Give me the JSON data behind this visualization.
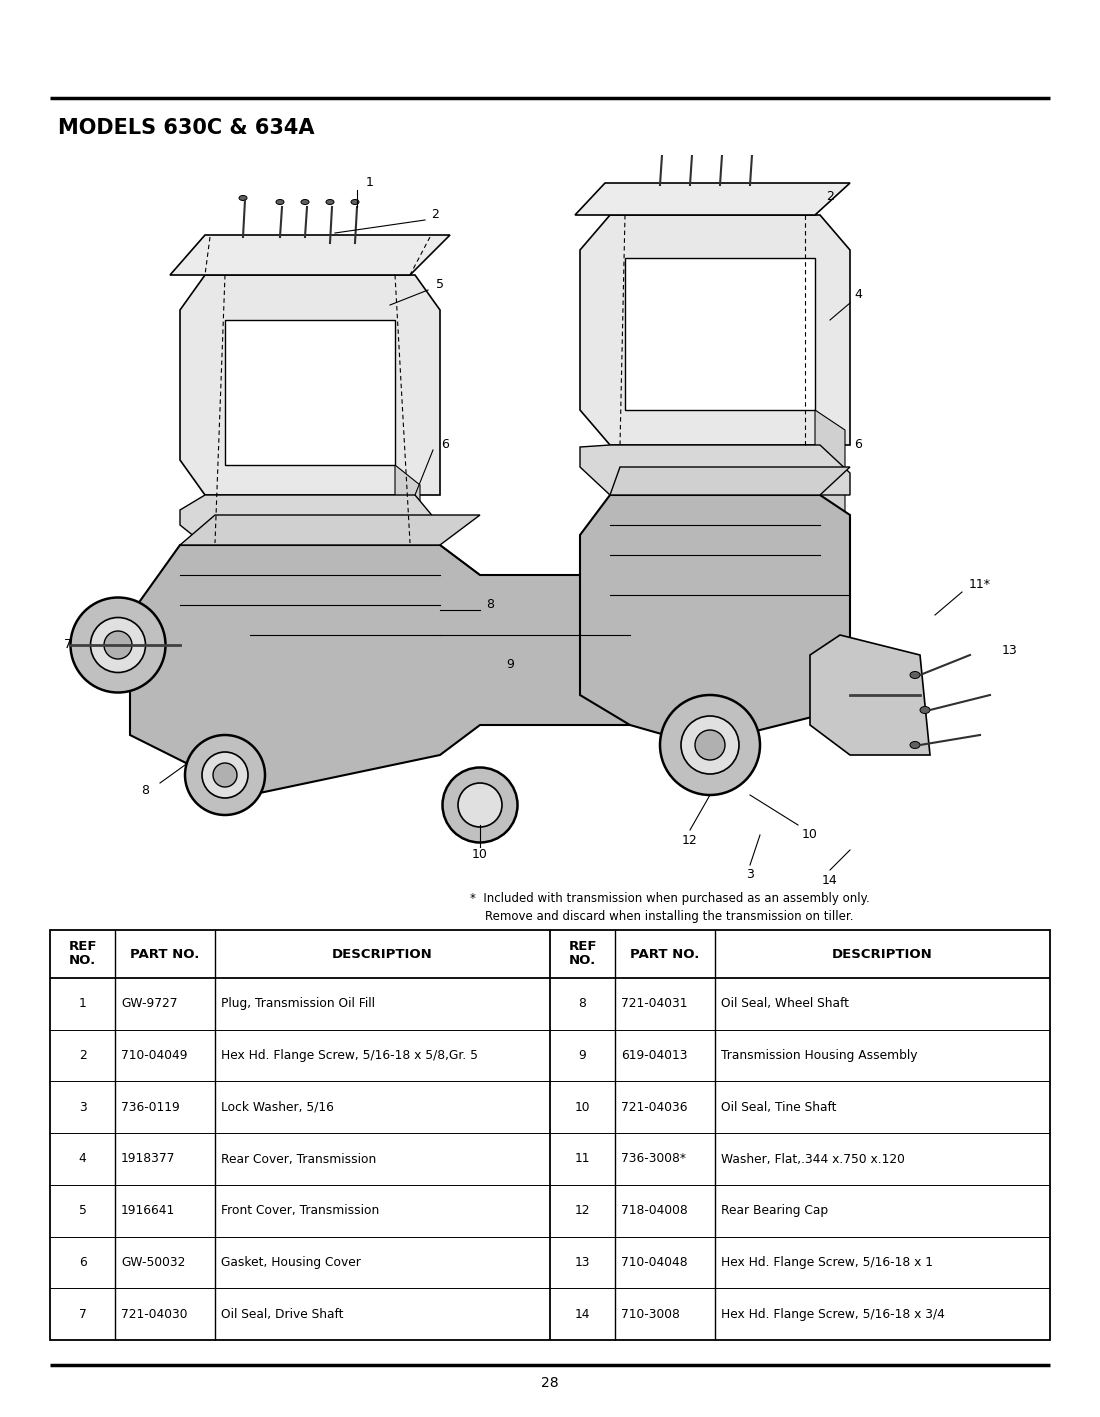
{
  "title": "MODELS 630C & 634A",
  "page_number": "28",
  "footnote_line1": "*  Included with transmission when purchased as an assembly only.",
  "footnote_line2": "    Remove and discard when installing the transmission on tiller.",
  "background_color": "#ffffff",
  "table_left_cols": [
    {
      "ref": "1",
      "part": "GW-9727",
      "desc": "Plug, Transmission Oil Fill"
    },
    {
      "ref": "2",
      "part": "710-04049",
      "desc": "Hex Hd. Flange Screw, 5/16-18 x 5/8,Gr. 5"
    },
    {
      "ref": "3",
      "part": "736-0119",
      "desc": "Lock Washer, 5/16"
    },
    {
      "ref": "4",
      "part": "1918377",
      "desc": "Rear Cover, Transmission"
    },
    {
      "ref": "5",
      "part": "1916641",
      "desc": "Front Cover, Transmission"
    },
    {
      "ref": "6",
      "part": "GW-50032",
      "desc": "Gasket, Housing Cover"
    },
    {
      "ref": "7",
      "part": "721-04030",
      "desc": "Oil Seal, Drive Shaft"
    }
  ],
  "table_right_cols": [
    {
      "ref": "8",
      "part": "721-04031",
      "desc": "Oil Seal, Wheel Shaft"
    },
    {
      "ref": "9",
      "part": "619-04013",
      "desc": "Transmission Housing Assembly"
    },
    {
      "ref": "10",
      "part": "721-04036",
      "desc": "Oil Seal, Tine Shaft"
    },
    {
      "ref": "11",
      "part": "736-3008*",
      "desc": "Washer, Flat,.344 x.750 x.120"
    },
    {
      "ref": "12",
      "part": "718-04008",
      "desc": "Rear Bearing Cap"
    },
    {
      "ref": "13",
      "part": "710-04048",
      "desc": "Hex Hd. Flange Screw, 5/16-18 x 1"
    },
    {
      "ref": "14",
      "part": "710-3008",
      "desc": "Hex Hd. Flange Screw, 5/16-18 x 3/4"
    }
  ]
}
